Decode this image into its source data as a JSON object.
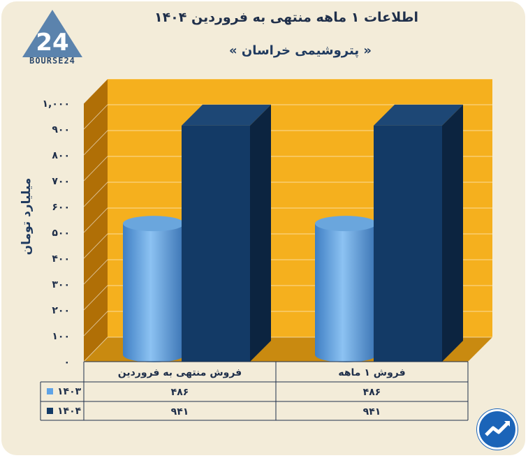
{
  "header": {
    "title": "اطلاعات ۱ ماهه منتهی به فروردین ۱۴۰۴",
    "subtitle": "« پتروشیمی خراسان »",
    "logo_text": "BOURSE24"
  },
  "colors": {
    "background": "#f3ecd9",
    "plot_back": "#f5b01e",
    "plot_side": "#b06f06",
    "series_1403": "#5fa3e6",
    "series_1404": "#133a66",
    "text": "#1f2f4a"
  },
  "chart_data": {
    "type": "bar",
    "categories": [
      "فروش منتهی به  فروردین",
      "فروش ۱  ماهه"
    ],
    "series": [
      {
        "name": "۱۴۰۳",
        "values": [
          486,
          486
        ],
        "value_labels": [
          "۴۸۶",
          "۴۸۶"
        ],
        "shape": "cylinder"
      },
      {
        "name": "۱۴۰۴",
        "values": [
          941,
          941
        ],
        "value_labels": [
          "۹۴۱",
          "۹۴۱"
        ],
        "shape": "box"
      }
    ],
    "title": "اطلاعات ۱ ماهه منتهی به فروردین ۱۴۰۴",
    "subtitle": "« پتروشیمی خراسان »",
    "ylabel": "میلیارد تومان",
    "ylim": [
      0,
      1000
    ],
    "yticks": [
      0,
      100,
      200,
      300,
      400,
      500,
      600,
      700,
      800,
      900,
      1000
    ],
    "ytick_labels": [
      "۰",
      "۱۰۰",
      "۲۰۰",
      "۳۰۰",
      "۴۰۰",
      "۵۰۰",
      "۶۰۰",
      "۷۰۰",
      "۸۰۰",
      "۹۰۰",
      "۱,۰۰۰"
    ],
    "grid": true,
    "legend": "data-table"
  }
}
